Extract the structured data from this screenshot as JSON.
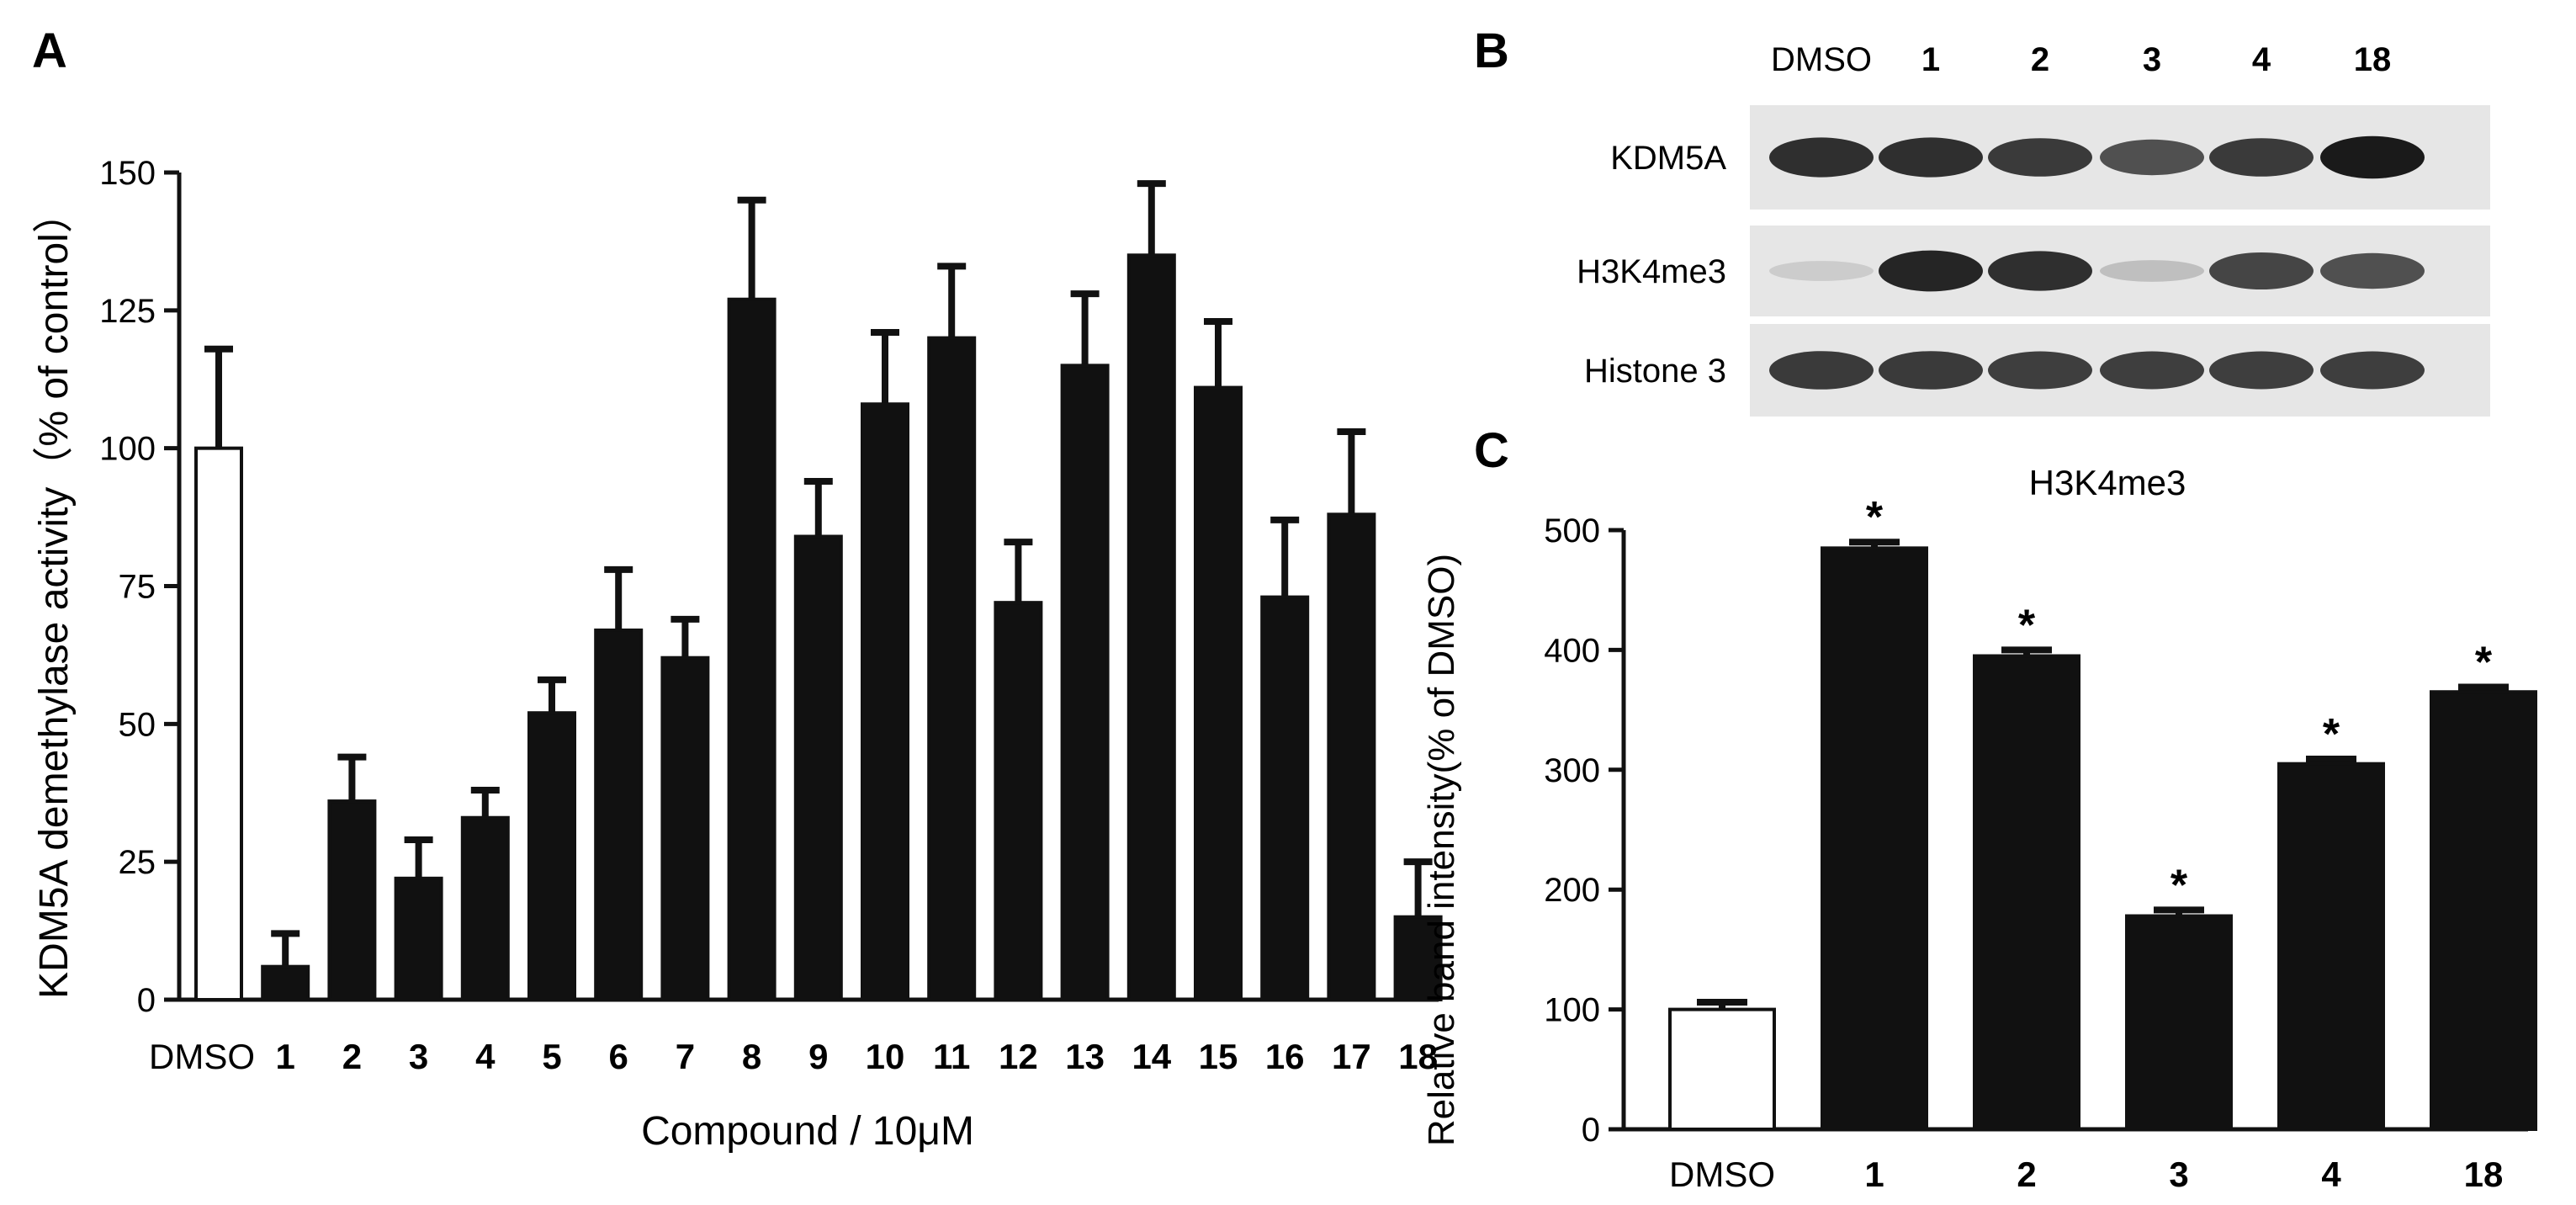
{
  "panels": {
    "a_letter": "A",
    "b_letter": "B",
    "c_letter": "C"
  },
  "western_blot": {
    "lanes": [
      "DMSO",
      "1",
      "2",
      "3",
      "4",
      "18"
    ],
    "rows": [
      {
        "label": "KDM5A",
        "intensities": [
          0.85,
          0.85,
          0.8,
          0.7,
          0.8,
          0.95
        ]
      },
      {
        "label": "H3K4me3",
        "intensities": [
          0.12,
          0.9,
          0.85,
          0.18,
          0.75,
          0.7
        ]
      },
      {
        "label": "Histone 3",
        "intensities": [
          0.8,
          0.8,
          0.78,
          0.78,
          0.78,
          0.78
        ]
      }
    ]
  },
  "chart_data": [
    {
      "type": "bar",
      "panel": "A",
      "title": "",
      "xlabel": "Compound / 10μM",
      "ylabel": "KDM5A demethylase activity（% of control）",
      "ylim": [
        0,
        150
      ],
      "yticks": [
        0,
        25,
        50,
        75,
        100,
        125,
        150
      ],
      "categories": [
        "DMSO",
        "1",
        "2",
        "3",
        "4",
        "5",
        "6",
        "7",
        "8",
        "9",
        "10",
        "11",
        "12",
        "13",
        "14",
        "15",
        "16",
        "17",
        "18"
      ],
      "values": [
        100,
        6,
        36,
        22,
        33,
        52,
        67,
        62,
        127,
        84,
        108,
        120,
        72,
        115,
        135,
        111,
        73,
        88,
        15
      ],
      "errors": [
        18,
        6,
        8,
        7,
        5,
        6,
        11,
        7,
        18,
        10,
        13,
        13,
        11,
        13,
        13,
        12,
        14,
        15,
        10
      ],
      "bar_colors": [
        "#ffffff",
        "#111111",
        "#111111",
        "#111111",
        "#111111",
        "#111111",
        "#111111",
        "#111111",
        "#111111",
        "#111111",
        "#111111",
        "#111111",
        "#111111",
        "#111111",
        "#111111",
        "#111111",
        "#111111",
        "#111111",
        "#111111"
      ],
      "legend": "none",
      "grid": false
    },
    {
      "type": "bar",
      "panel": "C",
      "title": "H3K4me3",
      "xlabel": "",
      "ylabel": "Relative band intensity(% of DMSO)",
      "ylim": [
        0,
        500
      ],
      "yticks": [
        0,
        100,
        200,
        300,
        400,
        500
      ],
      "categories": [
        "DMSO",
        "1",
        "2",
        "3",
        "4",
        "18"
      ],
      "values": [
        100,
        485,
        395,
        178,
        305,
        365
      ],
      "errors": [
        6,
        5,
        5,
        5,
        4,
        4
      ],
      "significance": [
        "",
        "*",
        "*",
        "*",
        "*",
        "*"
      ],
      "bar_colors": [
        "#ffffff",
        "#111111",
        "#111111",
        "#111111",
        "#111111",
        "#111111"
      ],
      "legend": "none",
      "grid": false
    }
  ]
}
